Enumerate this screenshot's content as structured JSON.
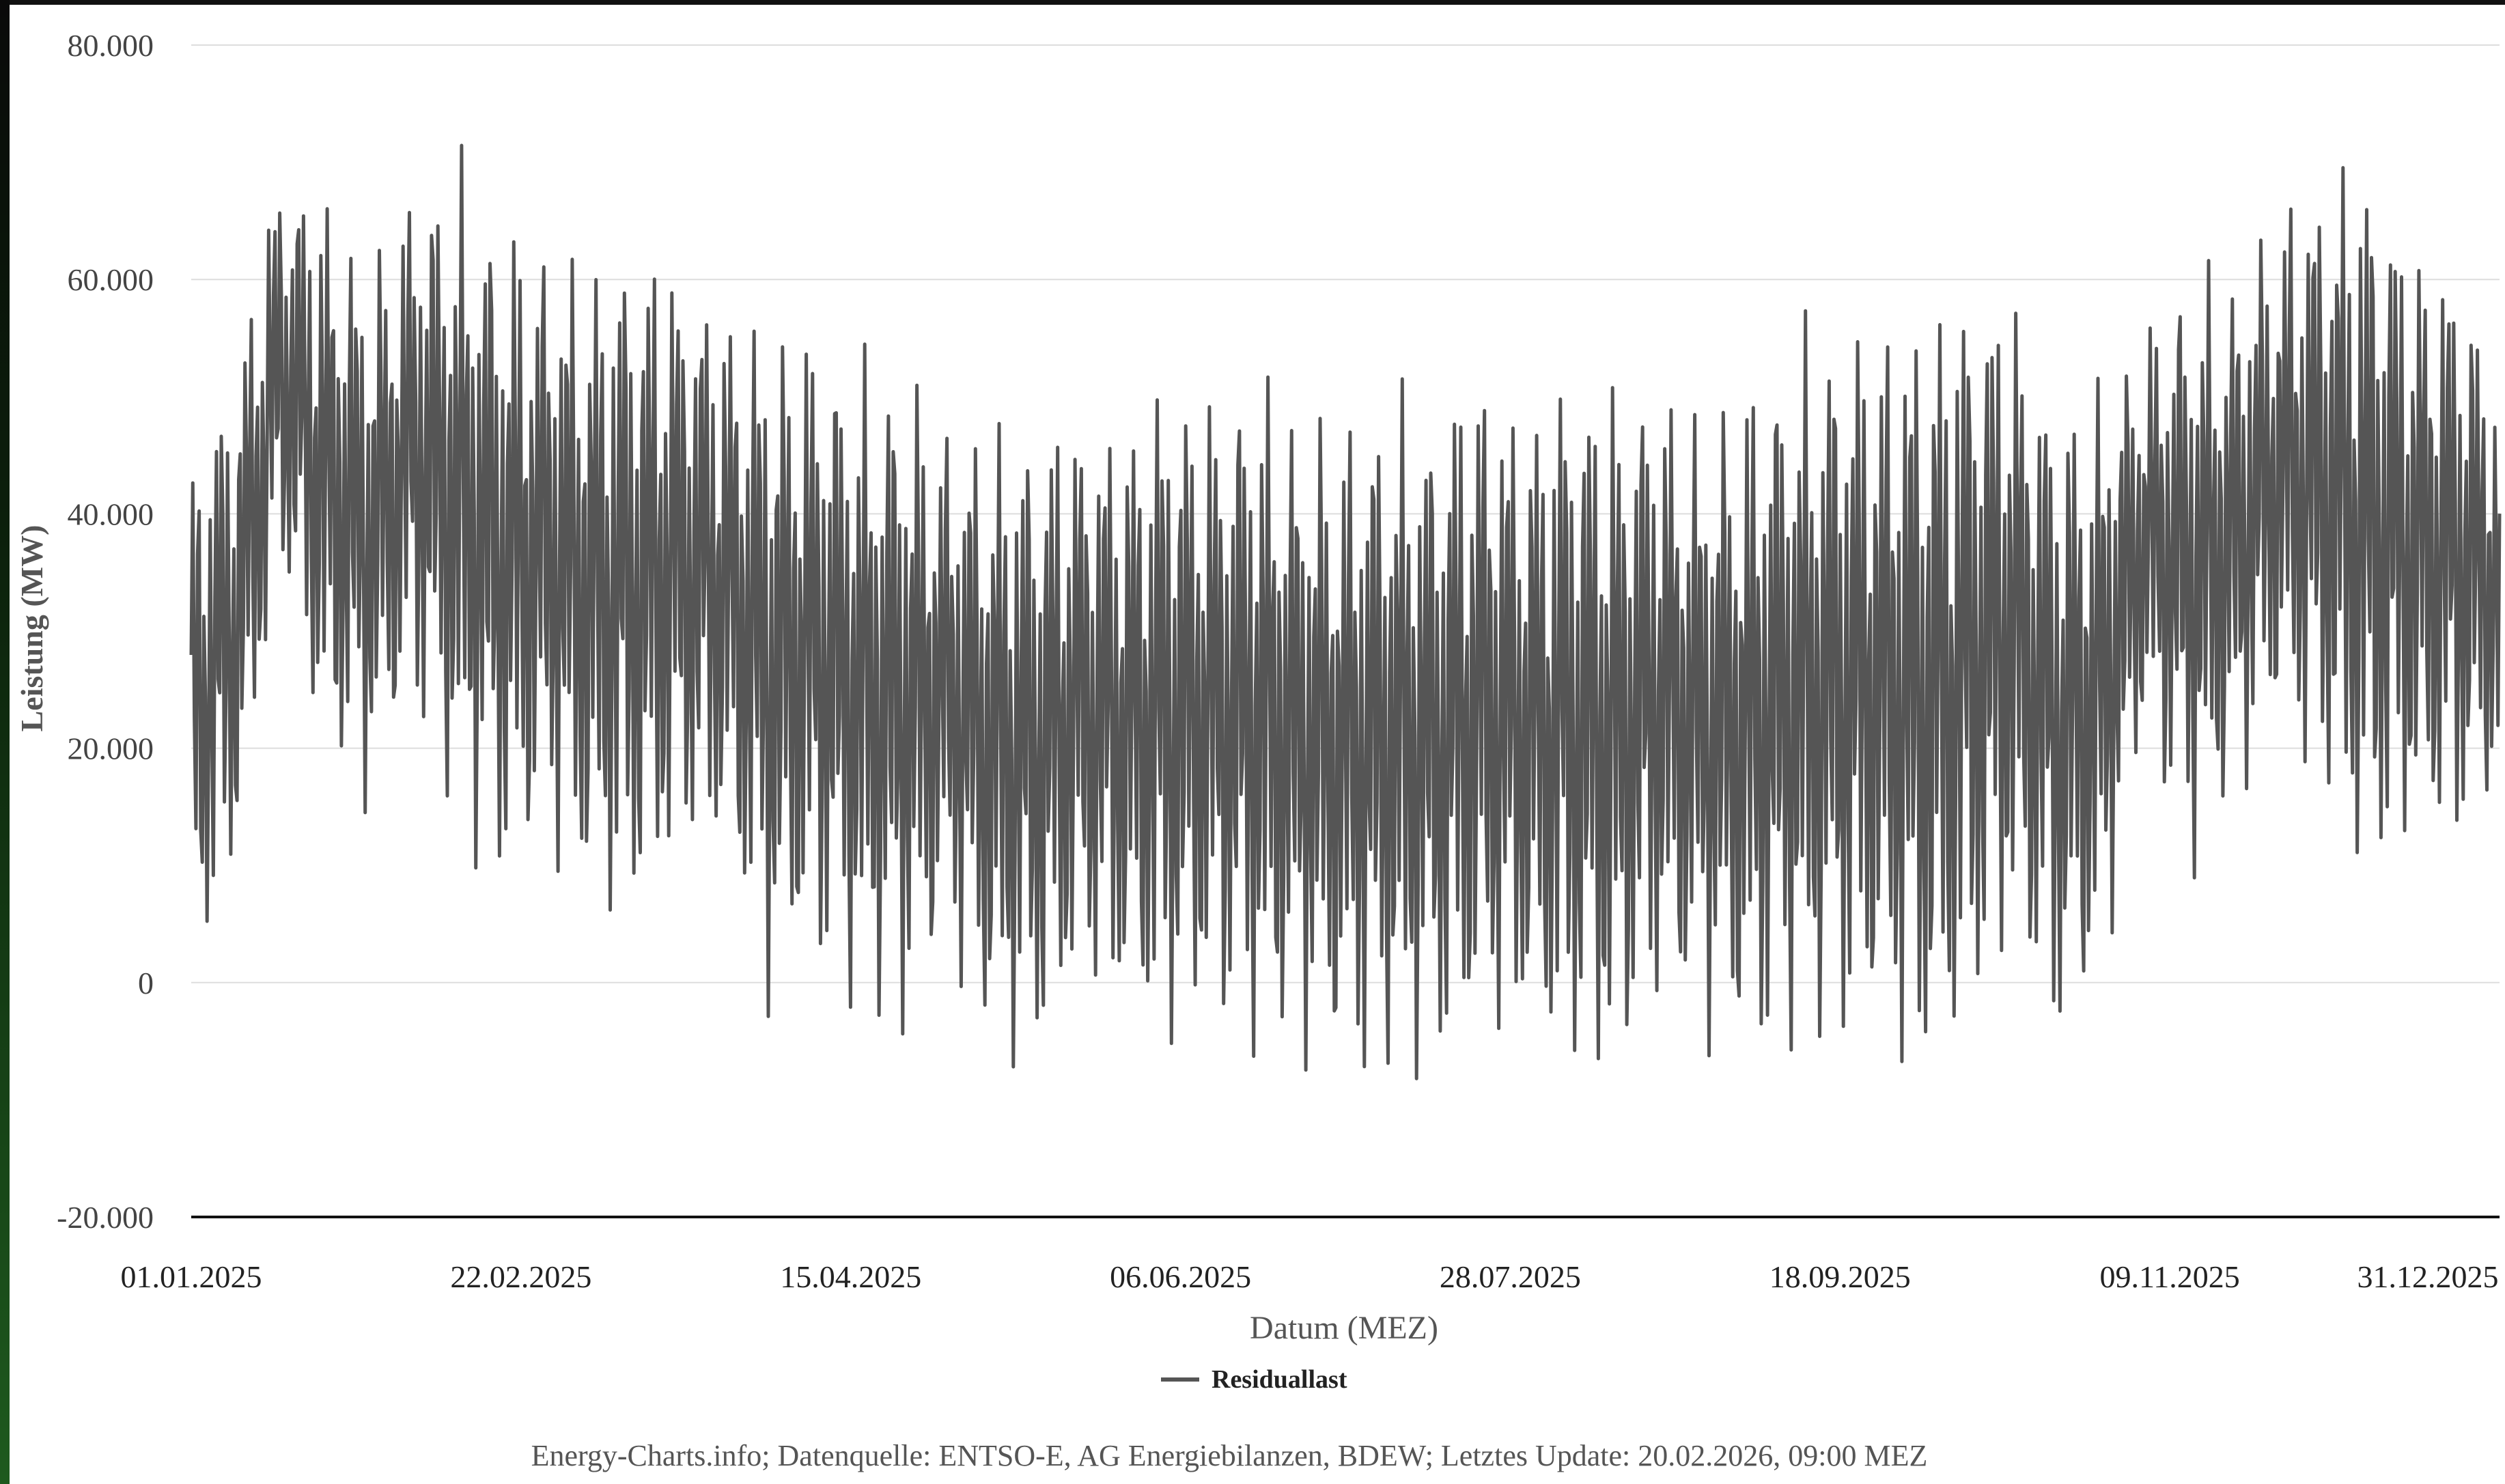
{
  "chart_data": {
    "type": "line",
    "xlabel": "Datum (MEZ)",
    "ylabel": "Leistung (MW)",
    "ylim": [
      -20000,
      80000
    ],
    "y_ticks": [
      "-20.000",
      "0",
      "20.000",
      "40.000",
      "60.000",
      "80.000"
    ],
    "x_ticks": [
      "01.01.2025",
      "22.02.2025",
      "15.04.2025",
      "06.06.2025",
      "28.07.2025",
      "18.09.2025",
      "09.11.2025",
      "31.12.2025"
    ],
    "x_range": [
      "2025-01-01",
      "2025-12-31"
    ],
    "grid": "horizontal",
    "legend_position": "bottom",
    "series": [
      {
        "name": "Residuallast",
        "color": "#555555",
        "x": [
          "2025-01-01",
          "2025-01-08",
          "2025-01-15",
          "2025-01-22",
          "2025-01-29",
          "2025-02-05",
          "2025-02-12",
          "2025-02-19",
          "2025-02-26",
          "2025-03-05",
          "2025-03-12",
          "2025-03-19",
          "2025-03-26",
          "2025-04-02",
          "2025-04-09",
          "2025-04-16",
          "2025-04-23",
          "2025-04-30",
          "2025-05-07",
          "2025-05-14",
          "2025-05-21",
          "2025-05-28",
          "2025-06-04",
          "2025-06-11",
          "2025-06-18",
          "2025-06-25",
          "2025-07-02",
          "2025-07-09",
          "2025-07-16",
          "2025-07-23",
          "2025-07-30",
          "2025-08-06",
          "2025-08-13",
          "2025-08-20",
          "2025-08-27",
          "2025-09-03",
          "2025-09-10",
          "2025-09-17",
          "2025-09-24",
          "2025-10-01",
          "2025-10-08",
          "2025-10-15",
          "2025-10-22",
          "2025-10-29",
          "2025-11-05",
          "2025-11-12",
          "2025-11-19",
          "2025-11-26",
          "2025-12-03",
          "2025-12-10",
          "2025-12-17",
          "2025-12-24",
          "2025-12-31"
        ],
        "max": [
          47000,
          55000,
          72000,
          70000,
          63000,
          70000,
          72000,
          67000,
          65000,
          64000,
          66000,
          64000,
          60000,
          59000,
          58000,
          55000,
          55000,
          49000,
          50000,
          50000,
          51000,
          50000,
          55000,
          52000,
          55000,
          50000,
          50000,
          53000,
          51000,
          56000,
          51000,
          56000,
          54000,
          54000,
          50000,
          53000,
          57000,
          59000,
          59000,
          61000,
          63000,
          62000,
          52000,
          53000,
          57000,
          63000,
          62000,
          68000,
          72000,
          74000,
          66000,
          64000,
          55000
        ],
        "min": [
          -2000,
          7000,
          34000,
          16000,
          13000,
          22000,
          10000,
          6000,
          10000,
          3000,
          2000,
          8000,
          9000,
          -5000,
          0,
          -5000,
          -7000,
          2000,
          -9000,
          -10000,
          -3000,
          -5000,
          -9000,
          -5000,
          -9000,
          -8000,
          -10000,
          -11000,
          -10000,
          -8000,
          -7000,
          -11000,
          -12000,
          -4000,
          -6000,
          -9000,
          -8000,
          -8000,
          -7000,
          -13000,
          -8000,
          0,
          -8000,
          -3000,
          20000,
          7000,
          13000,
          20000,
          13000,
          4000,
          9000,
          9000,
          14000
        ]
      }
    ]
  },
  "footer": {
    "source": "Energy-Charts.info; Datenquelle: ENTSO-E, AG Energiebilanzen, BDEW; Letztes Update: 20.02.2026, 09:00 MEZ"
  }
}
